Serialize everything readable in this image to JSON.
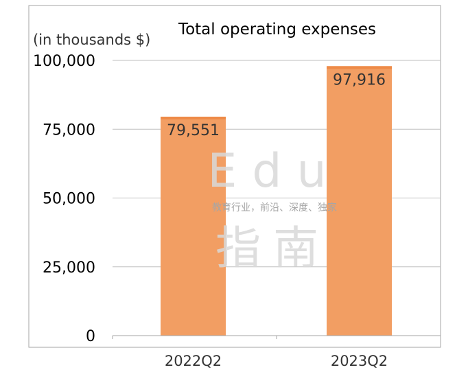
{
  "chart_data": {
    "type": "bar",
    "title": "Total operating expenses",
    "unit_label": "(in thousands $)",
    "categories": [
      "2022Q2",
      "2023Q2"
    ],
    "values": [
      79551,
      97916
    ],
    "value_labels": [
      "79,551",
      "97,916"
    ],
    "ylim": [
      0,
      100000
    ],
    "yticks": [
      0,
      25000,
      50000,
      75000,
      100000
    ],
    "ytick_labels": [
      "0",
      "25,000",
      "50,000",
      "75,000",
      "100,000"
    ],
    "grid": true,
    "legend": "none",
    "colors": {
      "bar": "#F29E63",
      "bar_top": "#EE8A47",
      "grid": "#BFBFBF",
      "axis": "#A6A6A6",
      "text": "#000000",
      "label_text": "#333333",
      "watermark": "#D9D9D9",
      "watermark_caption": "#A6A6A6"
    }
  },
  "watermark": {
    "line1": "Edu",
    "caption": "教育行业，前沿、深度、独家",
    "line2": "指南"
  }
}
